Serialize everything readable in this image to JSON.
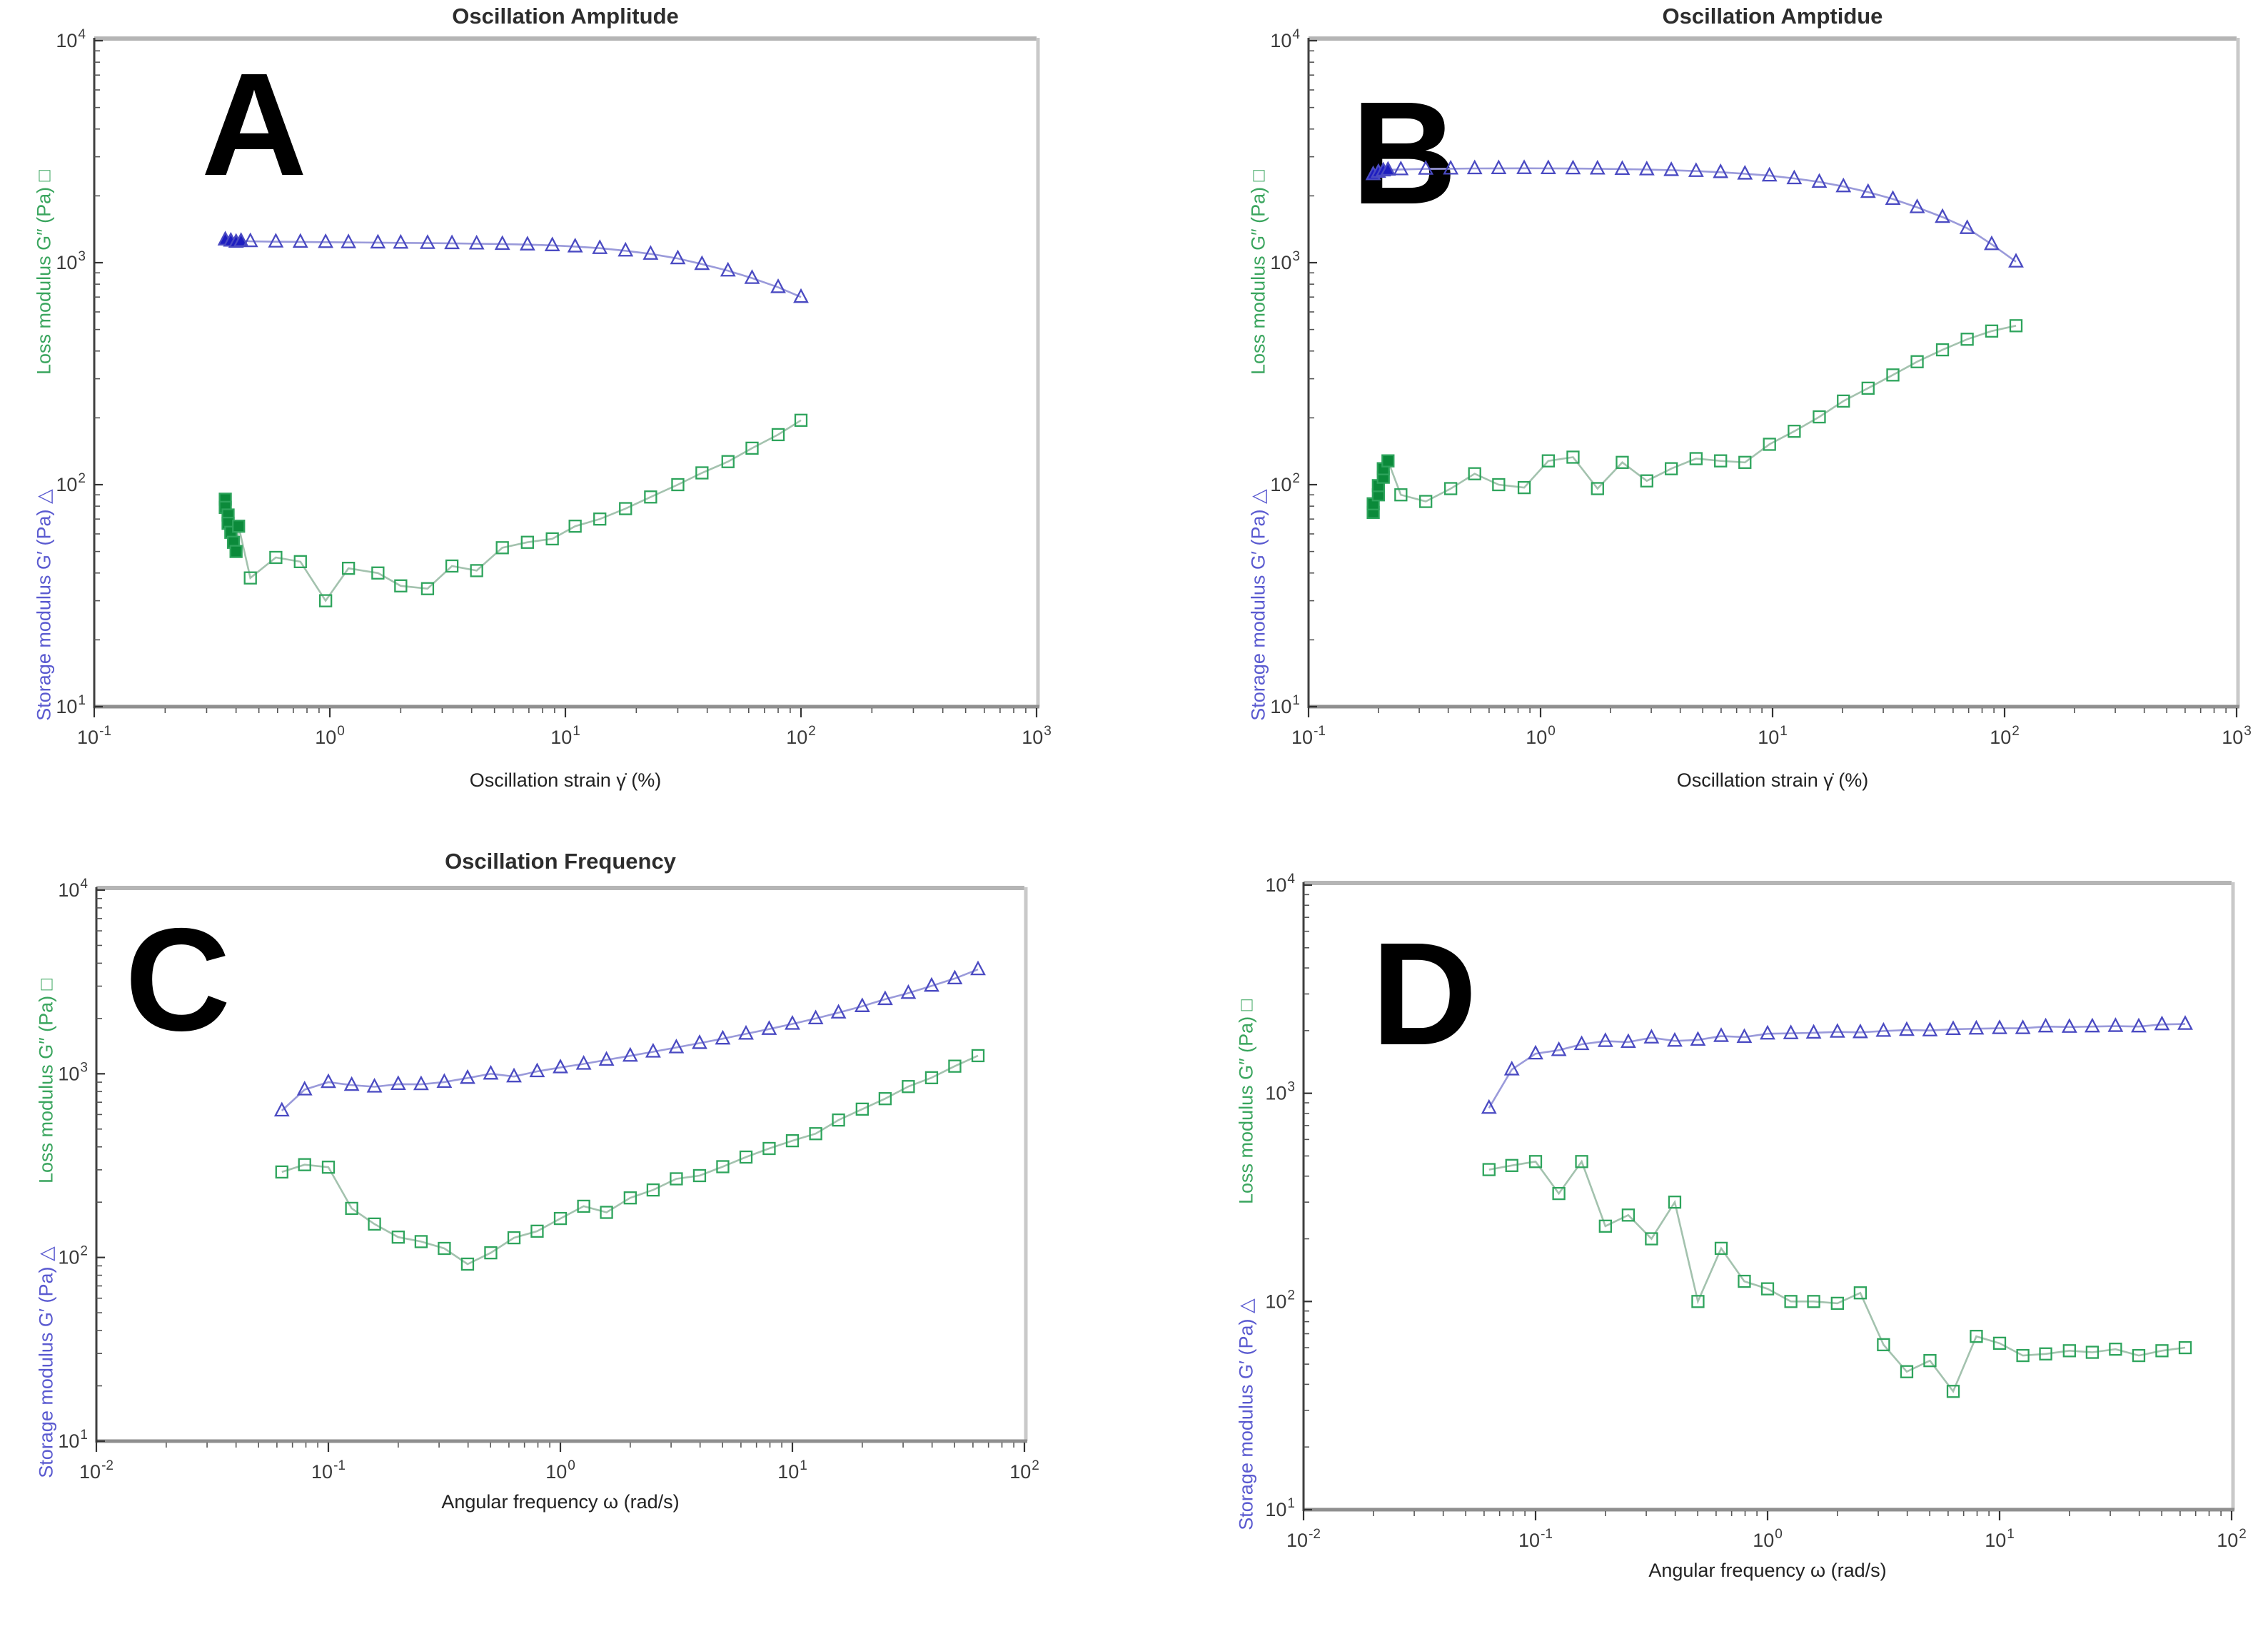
{
  "figure": {
    "background": "#ffffff",
    "panel_letters": [
      "A",
      "B",
      "C",
      "D"
    ]
  },
  "colors": {
    "storage_edge": "#4a4ac2",
    "storage_line": "#9a9ada",
    "storage_cluster": "#1d1dc0",
    "loss_edge": "#2ea45c",
    "loss_line": "#a3c2ae",
    "loss_cluster": "#0b8a3a",
    "ylabel_loss_text": "#3aa55e",
    "ylabel_storage_text": "#5a5ad0",
    "tick_text": "#3a3a3a"
  },
  "chart_data": [
    {
      "type": "line",
      "panel_letter": "A",
      "title": "Oscillation Amplitude",
      "xlabel": "Oscillation strain γ̇  (%)",
      "ylabel_top": "Loss modulus G″ (Pa) □",
      "ylabel_bottom": "Storage modulus G′ (Pa) △",
      "x_scale": "log",
      "y_scale": "log",
      "grid": false,
      "legend": "none",
      "xlim": [
        0.1,
        1000
      ],
      "ylim": [
        10,
        10000
      ],
      "x_tick_exponents": [
        -1,
        0,
        1,
        2,
        3
      ],
      "y_tick_exponents": [
        1,
        2,
        3,
        4
      ],
      "series": [
        {
          "name": "Storage modulus G′ (Pa)",
          "marker": "triangle",
          "n_cluster": 4,
          "x": [
            0.36,
            0.38,
            0.4,
            0.42,
            0.46,
            0.59,
            0.75,
            0.96,
            1.2,
            1.6,
            2.0,
            2.6,
            3.3,
            4.2,
            5.4,
            6.9,
            8.8,
            11,
            14,
            18,
            23,
            30,
            38,
            49,
            62,
            80,
            100
          ],
          "y": [
            1270,
            1255,
            1240,
            1252,
            1248,
            1243,
            1240,
            1237,
            1234,
            1231,
            1228,
            1225,
            1222,
            1218,
            1213,
            1206,
            1196,
            1182,
            1162,
            1132,
            1095,
            1045,
            985,
            920,
            852,
            775,
            700
          ]
        },
        {
          "name": "Loss modulus G″ (Pa)",
          "marker": "square",
          "n_cluster": 8,
          "x": [
            0.36,
            0.36,
            0.37,
            0.37,
            0.38,
            0.39,
            0.4,
            0.41,
            0.46,
            0.59,
            0.75,
            0.96,
            1.2,
            1.6,
            2.0,
            2.6,
            3.3,
            4.2,
            5.4,
            6.9,
            8.8,
            11,
            14,
            18,
            23,
            30,
            38,
            49,
            62,
            80,
            100
          ],
          "y": [
            86,
            79,
            73,
            67,
            61,
            55,
            50,
            65,
            38,
            47,
            45,
            30,
            42,
            40,
            35,
            34,
            43,
            41,
            52,
            55,
            57,
            65,
            70,
            78,
            88,
            100,
            113,
            127,
            146,
            168,
            195
          ]
        }
      ]
    },
    {
      "type": "line",
      "panel_letter": "B",
      "title": "Oscillation Amptidue",
      "xlabel": "Oscillation strain γ̇  (%)",
      "ylabel_top": "Loss modulus G″ (Pa) □",
      "ylabel_bottom": "Storage modulus G′ (Pa) △",
      "x_scale": "log",
      "y_scale": "log",
      "grid": false,
      "legend": "none",
      "xlim": [
        0.1,
        1000
      ],
      "ylim": [
        10,
        10000
      ],
      "x_tick_exponents": [
        -1,
        0,
        1,
        2,
        3
      ],
      "y_tick_exponents": [
        1,
        2,
        3,
        4
      ],
      "series": [
        {
          "name": "Storage modulus G′ (Pa)",
          "marker": "triangle",
          "n_cluster": 4,
          "x": [
            0.19,
            0.2,
            0.21,
            0.22,
            0.25,
            0.32,
            0.41,
            0.52,
            0.66,
            0.85,
            1.08,
            1.38,
            1.76,
            2.25,
            2.87,
            3.66,
            4.68,
            5.97,
            7.6,
            9.7,
            12.4,
            15.9,
            20.2,
            25.8,
            33,
            42,
            54,
            69,
            88,
            112
          ],
          "y": [
            2500,
            2560,
            2600,
            2620,
            2630,
            2645,
            2650,
            2658,
            2660,
            2662,
            2660,
            2655,
            2650,
            2640,
            2628,
            2610,
            2585,
            2555,
            2515,
            2465,
            2395,
            2310,
            2205,
            2080,
            1935,
            1775,
            1605,
            1430,
            1210,
            1010
          ]
        },
        {
          "name": "Loss modulus G″ (Pa)",
          "marker": "square",
          "n_cluster": 7,
          "x": [
            0.19,
            0.19,
            0.2,
            0.2,
            0.21,
            0.21,
            0.22,
            0.25,
            0.32,
            0.41,
            0.52,
            0.66,
            0.85,
            1.08,
            1.38,
            1.76,
            2.25,
            2.87,
            3.66,
            4.68,
            5.97,
            7.6,
            9.7,
            12.4,
            15.9,
            20.2,
            25.8,
            33,
            42,
            54,
            69,
            88,
            112
          ],
          "y": [
            75,
            82,
            90,
            99,
            108,
            118,
            128,
            90,
            84,
            96,
            112,
            100,
            97,
            128,
            133,
            96,
            126,
            104,
            118,
            131,
            128,
            126,
            152,
            174,
            202,
            238,
            272,
            312,
            358,
            405,
            452,
            492,
            520
          ]
        }
      ]
    },
    {
      "type": "line",
      "panel_letter": "C",
      "title": "Oscillation Frequency",
      "xlabel": "Angular frequency ω  (rad/s)",
      "ylabel_top": "Loss modulus G″ (Pa) □",
      "ylabel_bottom": "Storage modulus G′ (Pa) △",
      "x_scale": "log",
      "y_scale": "log",
      "grid": false,
      "legend": "none",
      "xlim": [
        0.01,
        100
      ],
      "ylim": [
        10,
        10000
      ],
      "x_tick_exponents": [
        -2,
        -1,
        0,
        1,
        2
      ],
      "y_tick_exponents": [
        1,
        2,
        3,
        4
      ],
      "series": [
        {
          "name": "Storage modulus G′ (Pa)",
          "marker": "triangle",
          "n_cluster": 0,
          "x": [
            0.063,
            0.079,
            0.1,
            0.126,
            0.158,
            0.2,
            0.251,
            0.316,
            0.398,
            0.501,
            0.631,
            0.794,
            1.0,
            1.26,
            1.58,
            2.0,
            2.51,
            3.16,
            3.98,
            5.01,
            6.31,
            7.94,
            10,
            12.6,
            15.8,
            20,
            25.1,
            31.6,
            39.8,
            50.1,
            63.1
          ],
          "y": [
            630,
            820,
            900,
            868,
            850,
            878,
            876,
            902,
            948,
            1000,
            966,
            1030,
            1082,
            1132,
            1190,
            1252,
            1318,
            1390,
            1468,
            1552,
            1650,
            1752,
            1868,
            2000,
            2150,
            2330,
            2545,
            2750,
            3010,
            3300,
            3700
          ]
        },
        {
          "name": "Loss modulus G″ (Pa)",
          "marker": "square",
          "n_cluster": 0,
          "x": [
            0.063,
            0.079,
            0.1,
            0.126,
            0.158,
            0.2,
            0.251,
            0.316,
            0.398,
            0.501,
            0.631,
            0.794,
            1.0,
            1.26,
            1.58,
            2.0,
            2.51,
            3.16,
            3.98,
            5.01,
            6.31,
            7.94,
            10,
            12.6,
            15.8,
            20,
            25.1,
            31.6,
            39.8,
            50.1,
            63.1
          ],
          "y": [
            292,
            320,
            310,
            185,
            152,
            129,
            122,
            112,
            92,
            106,
            128,
            139,
            163,
            190,
            176,
            211,
            233,
            268,
            279,
            312,
            352,
            392,
            432,
            472,
            560,
            642,
            732,
            852,
            952,
            1100,
            1255
          ]
        }
      ]
    },
    {
      "type": "line",
      "panel_letter": "D",
      "title": "",
      "xlabel": "Angular frequency ω  (rad/s)",
      "ylabel_top": "Loss modulus G″ (Pa) □",
      "ylabel_bottom": "Storage modulus G′ (Pa) △",
      "x_scale": "log",
      "y_scale": "log",
      "grid": false,
      "legend": "none",
      "xlim": [
        0.01,
        100
      ],
      "ylim": [
        10,
        10000
      ],
      "x_tick_exponents": [
        -2,
        -1,
        0,
        1,
        2
      ],
      "y_tick_exponents": [
        1,
        2,
        3,
        4
      ],
      "series": [
        {
          "name": "Storage modulus G′ (Pa)",
          "marker": "triangle",
          "n_cluster": 0,
          "x": [
            0.063,
            0.079,
            0.1,
            0.126,
            0.158,
            0.2,
            0.251,
            0.316,
            0.398,
            0.501,
            0.631,
            0.794,
            1.0,
            1.26,
            1.58,
            2.0,
            2.51,
            3.16,
            3.98,
            5.01,
            6.31,
            7.94,
            10,
            12.6,
            15.8,
            20,
            25.1,
            31.6,
            39.8,
            50.1,
            63.1
          ],
          "y": [
            850,
            1300,
            1550,
            1610,
            1720,
            1780,
            1762,
            1850,
            1785,
            1805,
            1882,
            1862,
            1932,
            1940,
            1952,
            1972,
            1962,
            1992,
            2012,
            2002,
            2032,
            2042,
            2052,
            2052,
            2092,
            2082,
            2092,
            2102,
            2092,
            2142,
            2152
          ]
        },
        {
          "name": "Loss modulus G″ (Pa)",
          "marker": "square",
          "n_cluster": 0,
          "x": [
            0.063,
            0.079,
            0.1,
            0.126,
            0.158,
            0.2,
            0.251,
            0.316,
            0.398,
            0.501,
            0.631,
            0.794,
            1.0,
            1.26,
            1.58,
            2.0,
            2.51,
            3.16,
            3.98,
            5.01,
            6.31,
            7.94,
            10,
            12.6,
            15.8,
            20,
            25.1,
            31.6,
            39.8,
            50.1,
            63.1
          ],
          "y": [
            430,
            450,
            470,
            330,
            470,
            230,
            260,
            200,
            300,
            100,
            180,
            125,
            115,
            100,
            100,
            98,
            110,
            62,
            46,
            52,
            37,
            68,
            63,
            55,
            56,
            58,
            57,
            59,
            55,
            58,
            60
          ]
        }
      ]
    }
  ]
}
